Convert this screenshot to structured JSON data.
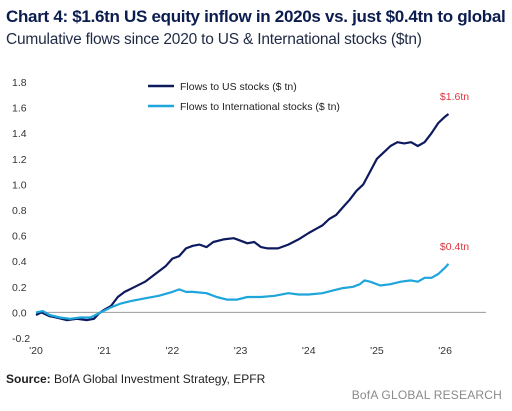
{
  "header": {
    "title": "Chart 4: $1.6tn US equity inflow in 2020s vs. just $0.4tn to global",
    "subtitle": "Cumulative flows since 2020 to US & International stocks ($tn)"
  },
  "footer": {
    "source_label": "Source:",
    "source_text": " BofA Global Investment Strategy, EPFR",
    "brand": "BofA GLOBAL RESEARCH"
  },
  "colors": {
    "us": "#0d1a5e",
    "intl": "#1ea5dc",
    "annotation": "#d9363e",
    "axis": "#999999"
  },
  "chart_data": {
    "type": "line",
    "title": "Chart 4: $1.6tn US equity inflow in 2020s vs. just $0.4tn to global",
    "subtitle": "Cumulative flows since 2020 to US & International stocks ($tn)",
    "xlabel": "",
    "ylabel": "",
    "x_ticks": [
      {
        "value": 2020,
        "label": "'20"
      },
      {
        "value": 2021,
        "label": "'21"
      },
      {
        "value": 2022,
        "label": "'22"
      },
      {
        "value": 2023,
        "label": "'23"
      },
      {
        "value": 2024,
        "label": "'24"
      },
      {
        "value": 2025,
        "label": "'25"
      },
      {
        "value": 2026,
        "label": "'26"
      }
    ],
    "xlim": [
      2020,
      2026.6
    ],
    "ylim": [
      -0.2,
      1.8
    ],
    "y_ticks": [
      -0.2,
      0.0,
      0.2,
      0.4,
      0.6,
      0.8,
      1.0,
      1.2,
      1.4,
      1.6,
      1.8
    ],
    "y_tick_labels": [
      "-0.2",
      "0.0",
      "0.2",
      "0.4",
      "0.6",
      "0.8",
      "1.0",
      "1.2",
      "1.4",
      "1.6",
      "1.8"
    ],
    "grid": false,
    "legend_position": "top-center",
    "series": [
      {
        "name": "Flows to US stocks ($ tn)",
        "color": "#0d1a5e",
        "end_label": "$1.6tn",
        "points": [
          [
            2020.0,
            -0.02
          ],
          [
            2020.08,
            0.0
          ],
          [
            2020.2,
            -0.03
          ],
          [
            2020.3,
            -0.04
          ],
          [
            2020.45,
            -0.06
          ],
          [
            2020.6,
            -0.05
          ],
          [
            2020.75,
            -0.06
          ],
          [
            2020.85,
            -0.05
          ],
          [
            2020.92,
            -0.01
          ],
          [
            2021.0,
            0.02
          ],
          [
            2021.1,
            0.05
          ],
          [
            2021.2,
            0.12
          ],
          [
            2021.3,
            0.16
          ],
          [
            2021.45,
            0.2
          ],
          [
            2021.6,
            0.24
          ],
          [
            2021.75,
            0.3
          ],
          [
            2021.9,
            0.36
          ],
          [
            2022.0,
            0.42
          ],
          [
            2022.1,
            0.44
          ],
          [
            2022.2,
            0.5
          ],
          [
            2022.3,
            0.52
          ],
          [
            2022.4,
            0.53
          ],
          [
            2022.5,
            0.51
          ],
          [
            2022.6,
            0.55
          ],
          [
            2022.75,
            0.57
          ],
          [
            2022.9,
            0.58
          ],
          [
            2023.0,
            0.56
          ],
          [
            2023.1,
            0.54
          ],
          [
            2023.2,
            0.55
          ],
          [
            2023.3,
            0.51
          ],
          [
            2023.4,
            0.5
          ],
          [
            2023.55,
            0.5
          ],
          [
            2023.7,
            0.53
          ],
          [
            2023.85,
            0.57
          ],
          [
            2024.0,
            0.62
          ],
          [
            2024.1,
            0.65
          ],
          [
            2024.2,
            0.68
          ],
          [
            2024.3,
            0.73
          ],
          [
            2024.4,
            0.76
          ],
          [
            2024.5,
            0.82
          ],
          [
            2024.6,
            0.88
          ],
          [
            2024.7,
            0.95
          ],
          [
            2024.8,
            1.0
          ],
          [
            2024.9,
            1.1
          ],
          [
            2025.0,
            1.2
          ],
          [
            2025.1,
            1.25
          ],
          [
            2025.2,
            1.3
          ],
          [
            2025.3,
            1.33
          ],
          [
            2025.4,
            1.32
          ],
          [
            2025.5,
            1.33
          ],
          [
            2025.6,
            1.3
          ],
          [
            2025.7,
            1.33
          ],
          [
            2025.8,
            1.4
          ],
          [
            2025.9,
            1.48
          ],
          [
            2026.0,
            1.53
          ],
          [
            2026.05,
            1.55
          ]
        ]
      },
      {
        "name": "Flows to International stocks ($ tn)",
        "color": "#1ea5dc",
        "end_label": "$0.4tn",
        "points": [
          [
            2020.0,
            0.0
          ],
          [
            2020.1,
            0.01
          ],
          [
            2020.2,
            -0.02
          ],
          [
            2020.35,
            -0.04
          ],
          [
            2020.5,
            -0.05
          ],
          [
            2020.65,
            -0.04
          ],
          [
            2020.8,
            -0.04
          ],
          [
            2020.95,
            0.0
          ],
          [
            2021.1,
            0.04
          ],
          [
            2021.25,
            0.07
          ],
          [
            2021.4,
            0.09
          ],
          [
            2021.6,
            0.11
          ],
          [
            2021.8,
            0.13
          ],
          [
            2022.0,
            0.16
          ],
          [
            2022.1,
            0.18
          ],
          [
            2022.2,
            0.16
          ],
          [
            2022.3,
            0.16
          ],
          [
            2022.5,
            0.15
          ],
          [
            2022.65,
            0.12
          ],
          [
            2022.8,
            0.1
          ],
          [
            2022.95,
            0.1
          ],
          [
            2023.1,
            0.12
          ],
          [
            2023.3,
            0.12
          ],
          [
            2023.5,
            0.13
          ],
          [
            2023.7,
            0.15
          ],
          [
            2023.85,
            0.14
          ],
          [
            2024.0,
            0.14
          ],
          [
            2024.2,
            0.15
          ],
          [
            2024.35,
            0.17
          ],
          [
            2024.5,
            0.19
          ],
          [
            2024.65,
            0.2
          ],
          [
            2024.75,
            0.22
          ],
          [
            2024.82,
            0.25
          ],
          [
            2024.9,
            0.24
          ],
          [
            2025.05,
            0.21
          ],
          [
            2025.2,
            0.22
          ],
          [
            2025.35,
            0.24
          ],
          [
            2025.5,
            0.25
          ],
          [
            2025.6,
            0.24
          ],
          [
            2025.7,
            0.27
          ],
          [
            2025.8,
            0.27
          ],
          [
            2025.9,
            0.3
          ],
          [
            2026.0,
            0.35
          ],
          [
            2026.05,
            0.38
          ]
        ]
      }
    ]
  }
}
